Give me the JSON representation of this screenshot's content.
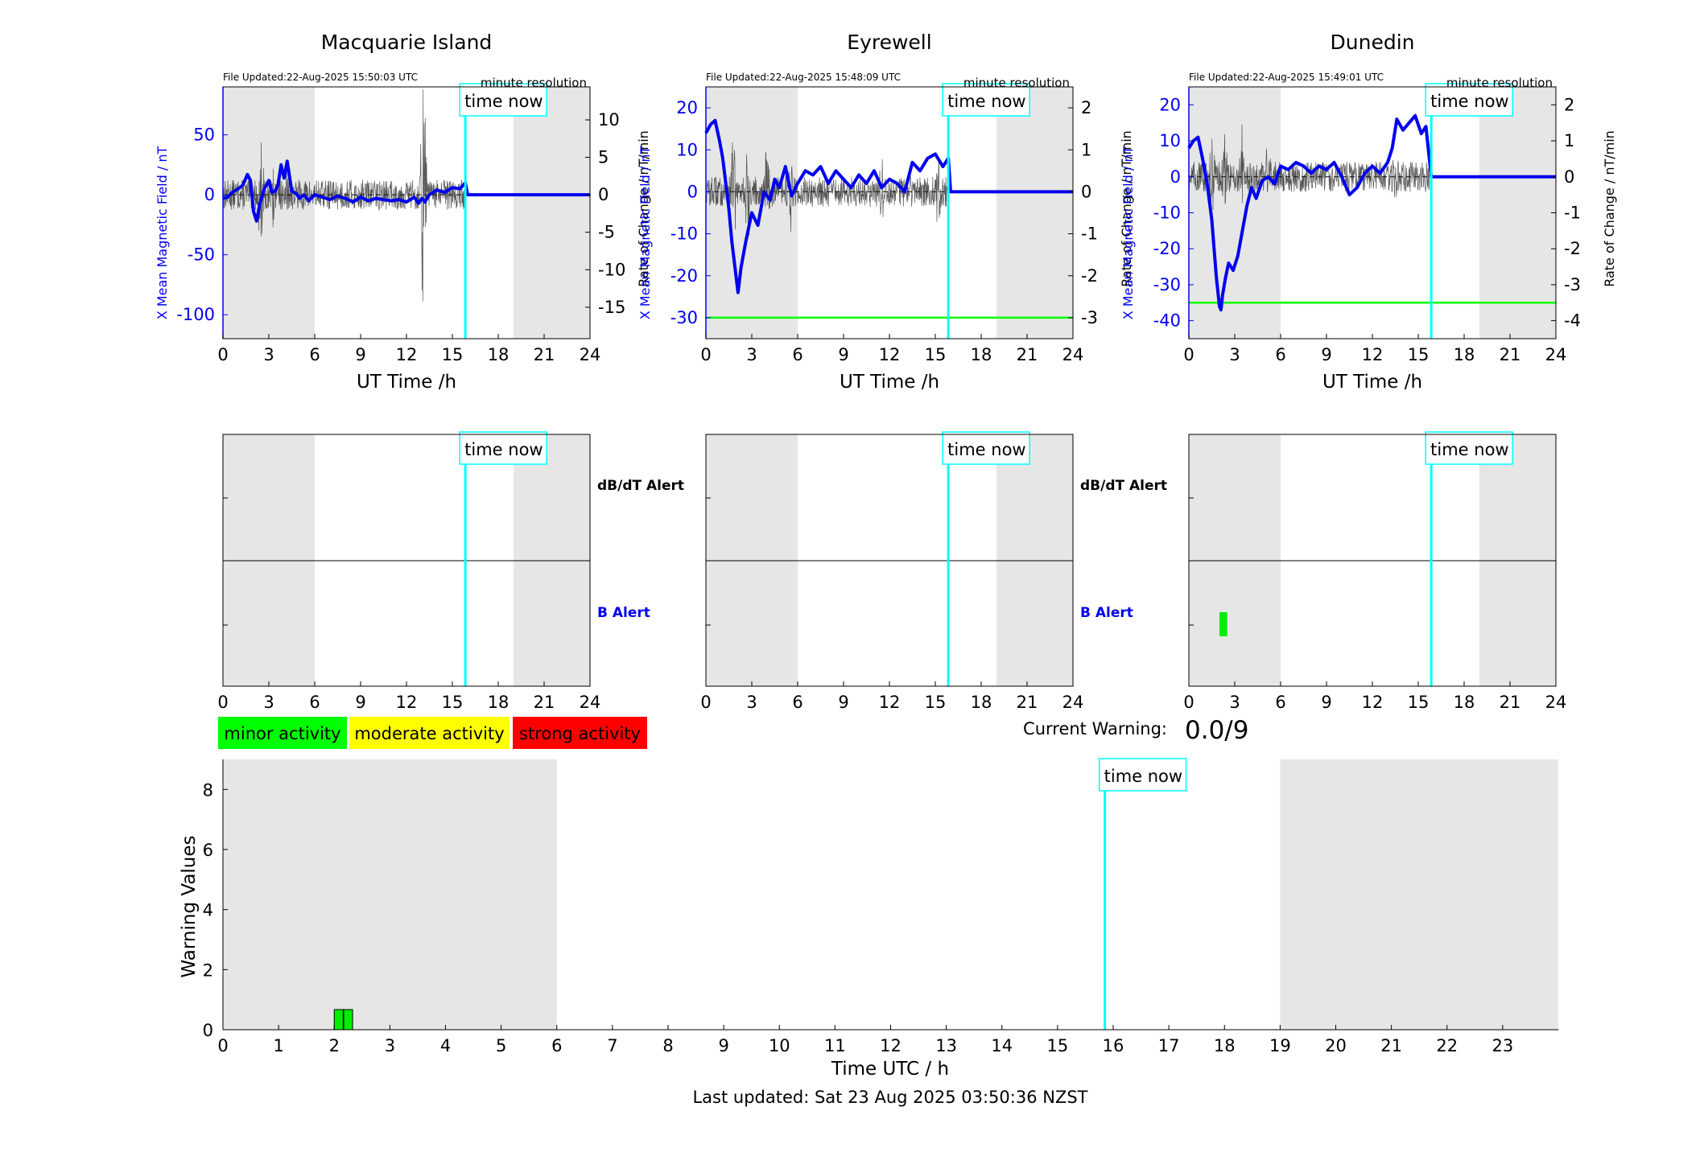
{
  "chart_data": [
    {
      "id": "macquarie",
      "type": "line",
      "title": "Macquarie Island",
      "file_updated": "File Updated:22-Aug-2025 15:50:03 UTC",
      "resolution_label": "minute resolution",
      "xlabel": "UT Time /h",
      "ylabel_left": "X Mean Magnetic Field / nT",
      "ylabel_right": "Rate of Change / nT/min",
      "xlim": [
        0,
        24
      ],
      "xticks": [
        0,
        3,
        6,
        9,
        12,
        15,
        18,
        21,
        24
      ],
      "ylim_left": [
        -120,
        90
      ],
      "yticks_left": [
        -100,
        -50,
        0,
        50
      ],
      "ylim_right": [
        -19.2,
        14.4
      ],
      "yticks_right": [
        -15,
        -10,
        -5,
        0,
        5,
        10
      ],
      "shaded_hours": [
        [
          0,
          6
        ],
        [
          19,
          24
        ]
      ],
      "time_now": 15.85,
      "time_now_label": "time now",
      "threshold": null,
      "series": [
        {
          "role": "field",
          "color": "#0000ee",
          "x": [
            0,
            0.3,
            0.6,
            1.0,
            1.3,
            1.6,
            1.8,
            2.0,
            2.2,
            2.4,
            2.7,
            3.0,
            3.2,
            3.4,
            3.6,
            3.8,
            4.0,
            4.2,
            4.5,
            4.8,
            5.0,
            5.3,
            5.6,
            6.0,
            6.5,
            7.0,
            7.5,
            8.0,
            8.5,
            9.0,
            9.5,
            10.0,
            10.5,
            11.0,
            11.5,
            12.0,
            12.5,
            12.8,
            13.0,
            13.2,
            13.5,
            14.0,
            14.5,
            15.0,
            15.5,
            15.85,
            16,
            24
          ],
          "y": [
            -3,
            -2,
            2,
            5,
            8,
            17,
            12,
            -14,
            -22,
            -8,
            5,
            12,
            2,
            3,
            8,
            25,
            14,
            28,
            3,
            1,
            -3,
            0,
            -5,
            0,
            -2,
            -4,
            -1,
            -3,
            -6,
            -2,
            -5,
            -3,
            -4,
            -5,
            -4,
            -6,
            -2,
            -7,
            -3,
            -6,
            0,
            4,
            2,
            6,
            5,
            10,
            0,
            0
          ]
        },
        {
          "role": "rate",
          "color": "#222222",
          "span": [
            0,
            15.8
          ],
          "bursts": [
            {
              "hour": 2.5,
              "amp": 7
            },
            {
              "hour": 3.3,
              "amp": 5
            },
            {
              "hour": 4.2,
              "amp": 4
            },
            {
              "hour": 13.1,
              "amp": 14
            }
          ]
        }
      ]
    },
    {
      "id": "eyrewell",
      "type": "line",
      "title": "Eyrewell",
      "file_updated": "File Updated:22-Aug-2025 15:48:09 UTC",
      "resolution_label": "minute resolution",
      "xlabel": "UT Time /h",
      "ylabel_left": "X Mean Magnetic Field / nT",
      "ylabel_right": "Rate of Change / nT/min",
      "xlim": [
        0,
        24
      ],
      "xticks": [
        0,
        3,
        6,
        9,
        12,
        15,
        18,
        21,
        24
      ],
      "ylim_left": [
        -35,
        25
      ],
      "yticks_left": [
        -30,
        -20,
        -10,
        0,
        10,
        20
      ],
      "ylim_right": [
        -3.5,
        2.5
      ],
      "yticks_right": [
        -3,
        -2,
        -1,
        0,
        1,
        2
      ],
      "shaded_hours": [
        [
          0,
          6
        ],
        [
          19,
          24
        ]
      ],
      "time_now": 15.85,
      "time_now_label": "time now",
      "threshold": -30,
      "series": [
        {
          "role": "field",
          "color": "#0000ee",
          "x": [
            0,
            0.3,
            0.6,
            0.9,
            1.1,
            1.3,
            1.5,
            1.7,
            1.9,
            2.1,
            2.3,
            2.6,
            3.0,
            3.4,
            3.8,
            4.2,
            4.5,
            4.8,
            5.2,
            5.6,
            6.0,
            6.5,
            7.0,
            7.5,
            8.0,
            8.5,
            9.0,
            9.5,
            10.0,
            10.5,
            11.0,
            11.5,
            12.0,
            12.5,
            13.0,
            13.5,
            14.0,
            14.5,
            15.0,
            15.5,
            15.85,
            16,
            24
          ],
          "y": [
            14,
            16,
            17,
            12,
            8,
            2,
            -4,
            -12,
            -18,
            -24,
            -18,
            -12,
            -5,
            -8,
            0,
            -2,
            3,
            1,
            6,
            -1,
            2,
            5,
            4,
            6,
            2,
            5,
            3,
            1,
            4,
            2,
            5,
            1,
            3,
            2,
            0,
            7,
            5,
            8,
            9,
            6,
            8,
            0,
            0
          ]
        },
        {
          "role": "rate",
          "color": "#222222",
          "span": [
            0,
            15.8
          ],
          "bursts": [
            {
              "hour": 1.8,
              "amp": 1.6
            },
            {
              "hour": 2.7,
              "amp": 1.4
            },
            {
              "hour": 4.0,
              "amp": 1.2
            },
            {
              "hour": 5.5,
              "amp": 1.0
            },
            {
              "hour": 11.5,
              "amp": 0.9
            },
            {
              "hour": 15.2,
              "amp": 0.8
            }
          ]
        }
      ]
    },
    {
      "id": "dunedin",
      "type": "line",
      "title": "Dunedin",
      "file_updated": "File Updated:22-Aug-2025 15:49:01 UTC",
      "resolution_label": "minute resolution",
      "xlabel": "UT Time /h",
      "ylabel_left": "X Mean Magnetic Field / nT",
      "ylabel_right": "Rate of Change / nT/min",
      "xlim": [
        0,
        24
      ],
      "xticks": [
        0,
        3,
        6,
        9,
        12,
        15,
        18,
        21,
        24
      ],
      "ylim_left": [
        -45,
        25
      ],
      "yticks_left": [
        -40,
        -30,
        -20,
        -10,
        0,
        10,
        20
      ],
      "ylim_right": [
        -4.5,
        2.5
      ],
      "yticks_right": [
        -4,
        -3,
        -2,
        -1,
        0,
        1,
        2
      ],
      "shaded_hours": [
        [
          0,
          6
        ],
        [
          19,
          24
        ]
      ],
      "time_now": 15.85,
      "time_now_label": "time now",
      "threshold": -35,
      "series": [
        {
          "role": "field",
          "color": "#0000ee",
          "x": [
            0,
            0.3,
            0.6,
            0.9,
            1.2,
            1.5,
            1.8,
            2.0,
            2.1,
            2.2,
            2.4,
            2.6,
            2.9,
            3.2,
            3.5,
            3.8,
            4.1,
            4.4,
            4.8,
            5.2,
            5.6,
            6.0,
            6.5,
            7.0,
            7.5,
            8.0,
            8.5,
            9.0,
            9.5,
            10.0,
            10.5,
            11.0,
            11.5,
            12.0,
            12.5,
            13.0,
            13.3,
            13.6,
            14.0,
            14.4,
            14.8,
            15.2,
            15.5,
            15.85,
            16,
            24
          ],
          "y": [
            8,
            10,
            11,
            5,
            -2,
            -12,
            -28,
            -36,
            -37,
            -33,
            -28,
            -24,
            -26,
            -22,
            -15,
            -8,
            -3,
            -6,
            -1,
            0,
            -2,
            3,
            2,
            4,
            3,
            1,
            3,
            2,
            4,
            0,
            -5,
            -3,
            1,
            3,
            1,
            4,
            8,
            16,
            13,
            15,
            17,
            12,
            14,
            0,
            0,
            0
          ]
        },
        {
          "role": "rate",
          "color": "#222222",
          "span": [
            0,
            15.8
          ],
          "bursts": [
            {
              "hour": 1.5,
              "amp": 1.4
            },
            {
              "hour": 2.3,
              "amp": 1.6
            },
            {
              "hour": 3.5,
              "amp": 1.2
            },
            {
              "hour": 5.2,
              "amp": 1.0
            },
            {
              "hour": 13.5,
              "amp": 0.9
            }
          ]
        }
      ]
    }
  ],
  "alerts": [
    {
      "id": "macquarie",
      "dbdt_label": "dB/dT Alert",
      "b_label": "B Alert",
      "xticks": [
        0,
        3,
        6,
        9,
        12,
        15,
        18,
        21,
        24
      ],
      "shaded_hours": [
        [
          0,
          6
        ],
        [
          19,
          24
        ]
      ],
      "time_now": 15.85,
      "time_now_label": "time now",
      "b_alert_bars": []
    },
    {
      "id": "eyrewell",
      "dbdt_label": "dB/dT Alert",
      "b_label": "B Alert",
      "xticks": [
        0,
        3,
        6,
        9,
        12,
        15,
        18,
        21,
        24
      ],
      "shaded_hours": [
        [
          0,
          6
        ],
        [
          19,
          24
        ]
      ],
      "time_now": 15.85,
      "time_now_label": "time now",
      "b_alert_bars": []
    },
    {
      "id": "dunedin",
      "dbdt_label": "",
      "b_label": "",
      "xticks": [
        0,
        3,
        6,
        9,
        12,
        15,
        18,
        21,
        24
      ],
      "shaded_hours": [
        [
          0,
          6
        ],
        [
          19,
          24
        ]
      ],
      "time_now": 15.85,
      "time_now_label": "time now",
      "b_alert_bars": [
        {
          "start": 2.0,
          "end": 2.5,
          "color": "#00ee00"
        }
      ]
    }
  ],
  "legend": [
    {
      "label": "minor activity",
      "color": "#00ff00"
    },
    {
      "label": "moderate activity",
      "color": "#ffff00"
    },
    {
      "label": "strong activity",
      "color": "#ff0000"
    }
  ],
  "current_warning": {
    "label": "Current Warning:",
    "value": "0.0/9"
  },
  "warning_chart": {
    "type": "bar",
    "xlabel": "Time UTC / h",
    "ylabel": "Warning Values",
    "xlim": [
      0,
      24
    ],
    "xticks": [
      0,
      1,
      2,
      3,
      4,
      5,
      6,
      7,
      8,
      9,
      10,
      11,
      12,
      13,
      14,
      15,
      16,
      17,
      18,
      19,
      20,
      21,
      22,
      23
    ],
    "ylim": [
      0,
      9
    ],
    "yticks": [
      0,
      2,
      4,
      6,
      8
    ],
    "shaded_hours": [
      [
        0,
        6
      ],
      [
        19,
        24
      ]
    ],
    "time_now": 15.85,
    "time_now_label": "time now",
    "bars": [
      {
        "hour": 2.0,
        "value": 0.67,
        "color": "#00ee00"
      },
      {
        "hour": 2.17,
        "value": 0.67,
        "color": "#00ee00"
      }
    ]
  },
  "footer": "Last updated: Sat 23 Aug 2025 03:50:36 NZST",
  "colors": {
    "shade": "#e6e6e6",
    "now": "#00ffff",
    "field": "#0000ee",
    "threshold": "#00ff00",
    "axis_blue": "#0000ee"
  }
}
